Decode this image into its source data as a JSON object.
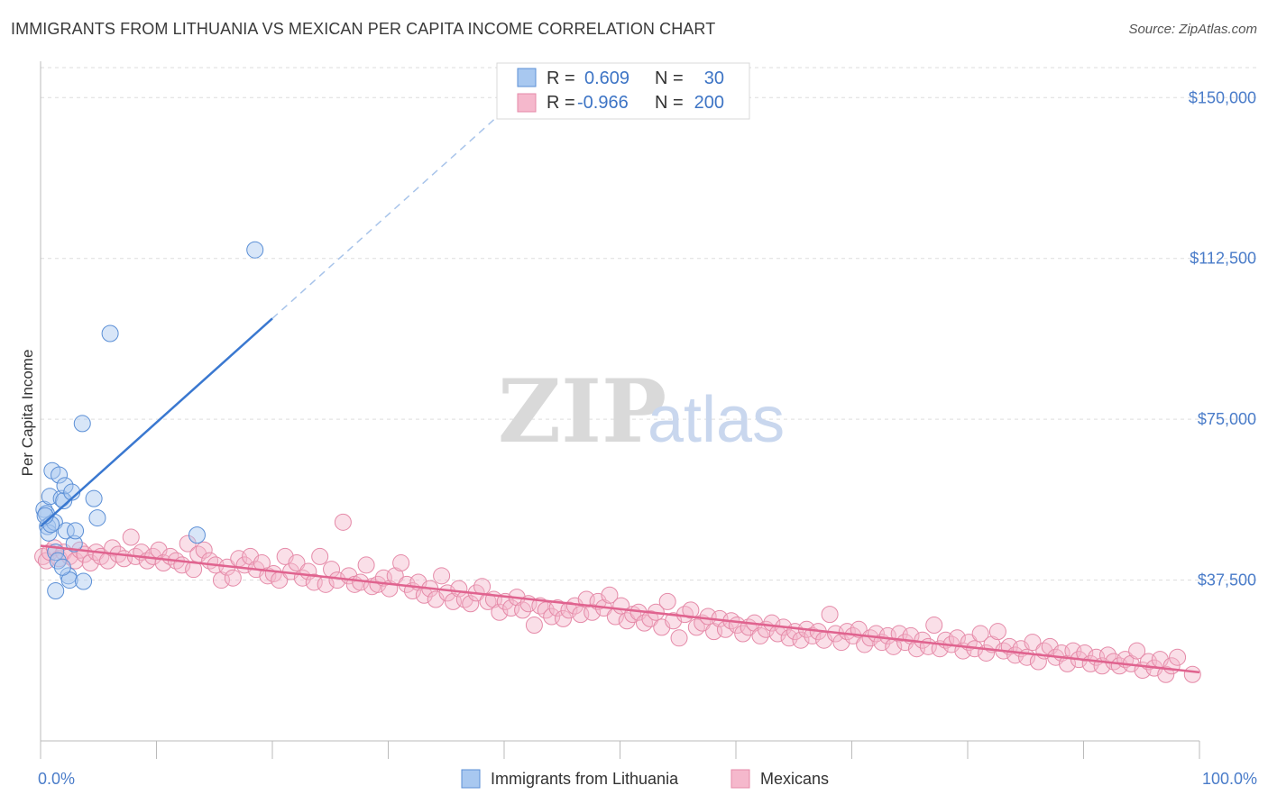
{
  "title": "IMMIGRANTS FROM LITHUANIA VS MEXICAN PER CAPITA INCOME CORRELATION CHART",
  "source": "Source: ZipAtlas.com",
  "watermark": {
    "zip": "ZIP",
    "atlas": "atlas"
  },
  "legend": {
    "rows": [
      {
        "r_label": "R = ",
        "r_value": "0.609",
        "n_label": "N = ",
        "n_value": "30",
        "color": "#a8c8f0"
      },
      {
        "r_label": "R = ",
        "r_value": "-0.966",
        "n_label": "N = ",
        "n_value": "200",
        "color": "#f5b8cc"
      }
    ]
  },
  "bottom_legend": [
    {
      "label": "Immigrants from Lithuania",
      "color": "#a8c8f0"
    },
    {
      "label": "Mexicans",
      "color": "#f5b8cc"
    }
  ],
  "chart_data": {
    "type": "scatter",
    "ylabel": "Per Capita Income",
    "xlim": [
      0,
      100
    ],
    "ylim": [
      0,
      157000
    ],
    "x_tick_labels": [
      "0.0%",
      "100.0%"
    ],
    "y_ticks": [
      {
        "value": 37500,
        "label": "$37,500"
      },
      {
        "value": 75000,
        "label": "$75,000"
      },
      {
        "value": 112500,
        "label": "$112,500"
      },
      {
        "value": 150000,
        "label": "$150,000"
      }
    ],
    "grid": true,
    "series": [
      {
        "name": "Immigrants from Lithuania",
        "color": "#a8c8f0",
        "stroke": "#5b8fd6",
        "trend": {
          "x0": 0,
          "y0": 50000,
          "x1": 20,
          "y1": 98500,
          "dash_to_x": 40,
          "dash_to_y": 147000,
          "color": "#3a78d0"
        },
        "points": [
          [
            0.3,
            54000
          ],
          [
            0.5,
            53000
          ],
          [
            0.6,
            50000
          ],
          [
            0.7,
            48500
          ],
          [
            0.8,
            57000
          ],
          [
            1.0,
            63000
          ],
          [
            1.2,
            51000
          ],
          [
            1.3,
            44000
          ],
          [
            1.5,
            42000
          ],
          [
            1.6,
            62000
          ],
          [
            1.8,
            56500
          ],
          [
            2.0,
            56000
          ],
          [
            2.1,
            59500
          ],
          [
            2.2,
            49000
          ],
          [
            2.4,
            38500
          ],
          [
            2.5,
            37500
          ],
          [
            2.7,
            58000
          ],
          [
            2.9,
            46000
          ],
          [
            3.0,
            49000
          ],
          [
            3.6,
            74000
          ],
          [
            3.7,
            37200
          ],
          [
            4.6,
            56500
          ],
          [
            4.9,
            52000
          ],
          [
            6.0,
            95000
          ],
          [
            13.5,
            48000
          ],
          [
            18.5,
            114500
          ],
          [
            1.3,
            35000
          ],
          [
            0.9,
            50500
          ],
          [
            1.9,
            40500
          ],
          [
            0.4,
            52500
          ]
        ]
      },
      {
        "name": "Mexicans",
        "color": "#f5b8cc",
        "stroke": "#e58aa8",
        "trend": {
          "x0": 0,
          "y0": 45500,
          "x1": 100,
          "y1": 16000,
          "color": "#e0638f"
        },
        "points": [
          [
            0.2,
            43000
          ],
          [
            0.5,
            42000
          ],
          [
            0.8,
            44000
          ],
          [
            1.2,
            45000
          ],
          [
            1.6,
            42500
          ],
          [
            2.0,
            44000
          ],
          [
            2.5,
            43000
          ],
          [
            3.0,
            42000
          ],
          [
            3.4,
            44500
          ],
          [
            3.8,
            43500
          ],
          [
            4.3,
            41500
          ],
          [
            4.8,
            44000
          ],
          [
            5.2,
            43000
          ],
          [
            5.8,
            42000
          ],
          [
            6.2,
            45000
          ],
          [
            6.7,
            43500
          ],
          [
            7.2,
            42500
          ],
          [
            7.8,
            47500
          ],
          [
            8.2,
            43000
          ],
          [
            8.7,
            44000
          ],
          [
            9.2,
            42000
          ],
          [
            9.7,
            43000
          ],
          [
            10.2,
            44500
          ],
          [
            10.6,
            41500
          ],
          [
            11.2,
            43000
          ],
          [
            11.7,
            42000
          ],
          [
            12.2,
            41000
          ],
          [
            12.7,
            46000
          ],
          [
            13.2,
            40000
          ],
          [
            13.6,
            43500
          ],
          [
            14.1,
            44500
          ],
          [
            14.6,
            42000
          ],
          [
            15.1,
            41000
          ],
          [
            15.6,
            37500
          ],
          [
            16.1,
            40500
          ],
          [
            16.6,
            38000
          ],
          [
            17.1,
            42500
          ],
          [
            17.6,
            41000
          ],
          [
            18.1,
            43000
          ],
          [
            18.6,
            40000
          ],
          [
            19.1,
            41500
          ],
          [
            19.6,
            38500
          ],
          [
            20.1,
            39000
          ],
          [
            20.6,
            37500
          ],
          [
            21.1,
            43000
          ],
          [
            21.6,
            39500
          ],
          [
            22.1,
            41500
          ],
          [
            22.6,
            38000
          ],
          [
            23.1,
            39500
          ],
          [
            23.6,
            37000
          ],
          [
            24.1,
            43000
          ],
          [
            24.6,
            36500
          ],
          [
            25.1,
            40000
          ],
          [
            25.6,
            37500
          ],
          [
            26.1,
            51000
          ],
          [
            26.6,
            38500
          ],
          [
            27.1,
            36500
          ],
          [
            27.6,
            37000
          ],
          [
            28.1,
            41000
          ],
          [
            28.6,
            36000
          ],
          [
            29.1,
            36500
          ],
          [
            29.6,
            38000
          ],
          [
            30.1,
            35500
          ],
          [
            30.6,
            38500
          ],
          [
            31.1,
            41500
          ],
          [
            31.6,
            36500
          ],
          [
            32.1,
            35000
          ],
          [
            32.6,
            37000
          ],
          [
            33.1,
            34000
          ],
          [
            33.6,
            35500
          ],
          [
            34.1,
            33000
          ],
          [
            34.6,
            38500
          ],
          [
            35.1,
            34500
          ],
          [
            35.6,
            32500
          ],
          [
            36.1,
            35500
          ],
          [
            36.6,
            33000
          ],
          [
            37.1,
            32000
          ],
          [
            37.6,
            34500
          ],
          [
            38.1,
            36000
          ],
          [
            38.6,
            32500
          ],
          [
            39.1,
            33000
          ],
          [
            39.6,
            30000
          ],
          [
            40.1,
            32500
          ],
          [
            40.6,
            31000
          ],
          [
            41.1,
            33500
          ],
          [
            41.6,
            30500
          ],
          [
            42.1,
            32000
          ],
          [
            42.6,
            27000
          ],
          [
            43.1,
            31500
          ],
          [
            43.6,
            30500
          ],
          [
            44.1,
            29000
          ],
          [
            44.6,
            31000
          ],
          [
            45.1,
            28500
          ],
          [
            45.6,
            30500
          ],
          [
            46.1,
            31500
          ],
          [
            46.6,
            29500
          ],
          [
            47.1,
            33000
          ],
          [
            47.6,
            30000
          ],
          [
            48.1,
            32500
          ],
          [
            48.6,
            31000
          ],
          [
            49.1,
            34000
          ],
          [
            49.6,
            29000
          ],
          [
            50.1,
            31500
          ],
          [
            50.6,
            28000
          ],
          [
            51.1,
            29500
          ],
          [
            51.6,
            30000
          ],
          [
            52.1,
            27500
          ],
          [
            52.6,
            28500
          ],
          [
            53.1,
            30000
          ],
          [
            53.6,
            26500
          ],
          [
            54.1,
            32500
          ],
          [
            54.6,
            28000
          ],
          [
            55.1,
            24000
          ],
          [
            55.6,
            29500
          ],
          [
            56.1,
            30500
          ],
          [
            56.6,
            26500
          ],
          [
            57.1,
            27500
          ],
          [
            57.6,
            29000
          ],
          [
            58.1,
            25500
          ],
          [
            58.6,
            28500
          ],
          [
            59.1,
            26000
          ],
          [
            59.6,
            28000
          ],
          [
            60.1,
            27000
          ],
          [
            60.6,
            25000
          ],
          [
            61.1,
            26500
          ],
          [
            61.6,
            27500
          ],
          [
            62.1,
            24500
          ],
          [
            62.6,
            26000
          ],
          [
            63.1,
            27500
          ],
          [
            63.6,
            25000
          ],
          [
            64.1,
            26500
          ],
          [
            64.6,
            24000
          ],
          [
            65.1,
            25500
          ],
          [
            65.6,
            23500
          ],
          [
            66.1,
            26000
          ],
          [
            66.6,
            24500
          ],
          [
            67.1,
            25500
          ],
          [
            67.6,
            23500
          ],
          [
            68.1,
            29500
          ],
          [
            68.6,
            25000
          ],
          [
            69.1,
            23000
          ],
          [
            69.6,
            25500
          ],
          [
            70.1,
            24500
          ],
          [
            70.6,
            26000
          ],
          [
            71.1,
            22500
          ],
          [
            71.6,
            24000
          ],
          [
            72.1,
            25000
          ],
          [
            72.6,
            23000
          ],
          [
            73.1,
            24500
          ],
          [
            73.6,
            22000
          ],
          [
            74.1,
            25000
          ],
          [
            74.6,
            23000
          ],
          [
            75.1,
            24500
          ],
          [
            75.6,
            21500
          ],
          [
            76.1,
            23500
          ],
          [
            76.6,
            22000
          ],
          [
            77.1,
            27000
          ],
          [
            77.6,
            21500
          ],
          [
            78.1,
            23500
          ],
          [
            78.6,
            22500
          ],
          [
            79.1,
            24000
          ],
          [
            79.6,
            21000
          ],
          [
            80.1,
            23000
          ],
          [
            80.6,
            21500
          ],
          [
            81.1,
            25000
          ],
          [
            81.6,
            20500
          ],
          [
            82.1,
            22500
          ],
          [
            82.6,
            25500
          ],
          [
            83.1,
            21000
          ],
          [
            83.6,
            22000
          ],
          [
            84.1,
            20000
          ],
          [
            84.6,
            21500
          ],
          [
            85.1,
            19500
          ],
          [
            85.6,
            23000
          ],
          [
            86.1,
            18500
          ],
          [
            86.6,
            21000
          ],
          [
            87.1,
            22000
          ],
          [
            87.6,
            19500
          ],
          [
            88.1,
            20500
          ],
          [
            88.6,
            18000
          ],
          [
            89.1,
            21000
          ],
          [
            89.6,
            19000
          ],
          [
            90.1,
            20500
          ],
          [
            90.6,
            18000
          ],
          [
            91.1,
            19500
          ],
          [
            91.6,
            17500
          ],
          [
            92.1,
            20000
          ],
          [
            92.6,
            18500
          ],
          [
            93.1,
            17500
          ],
          [
            93.6,
            19000
          ],
          [
            94.1,
            18000
          ],
          [
            94.6,
            21000
          ],
          [
            95.1,
            16500
          ],
          [
            95.6,
            18500
          ],
          [
            96.1,
            17000
          ],
          [
            96.6,
            19000
          ],
          [
            97.1,
            15500
          ],
          [
            97.6,
            17500
          ],
          [
            98.1,
            19500
          ],
          [
            99.4,
            15500
          ]
        ]
      }
    ]
  }
}
